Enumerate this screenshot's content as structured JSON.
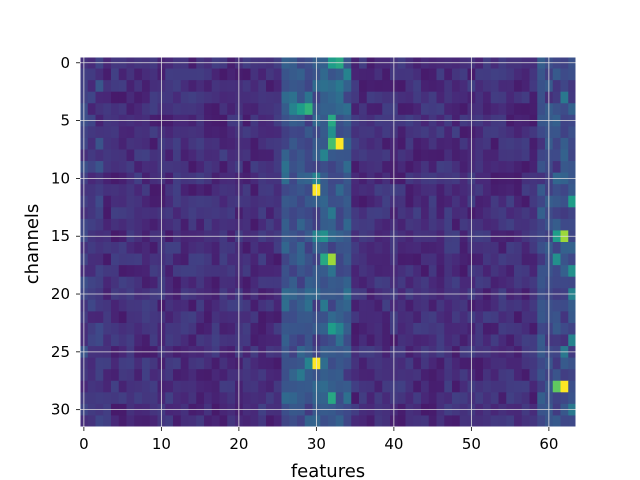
{
  "chart_data": {
    "type": "heatmap",
    "title": "",
    "xlabel": "features",
    "ylabel": "channels",
    "x_range": [
      -0.5,
      63.5
    ],
    "y_range": [
      31.5,
      -0.5
    ],
    "n_rows": 32,
    "n_cols": 64,
    "xticks": [
      0,
      10,
      20,
      30,
      40,
      50,
      60
    ],
    "yticks": [
      0,
      5,
      10,
      15,
      20,
      25,
      30
    ],
    "grid": true,
    "colormap": "viridis",
    "value_range": [
      0,
      1
    ],
    "baseline_value": 0.13,
    "highlights": [
      {
        "row": 7,
        "col": 33,
        "value": 1.0
      },
      {
        "row": 11,
        "col": 30,
        "value": 1.0
      },
      {
        "row": 26,
        "col": 30,
        "value": 1.0
      },
      {
        "row": 28,
        "col": 62,
        "value": 1.0
      },
      {
        "row": 28,
        "col": 61,
        "value": 0.75
      },
      {
        "row": 15,
        "col": 62,
        "value": 0.85
      },
      {
        "row": 15,
        "col": 61,
        "value": 0.55
      },
      {
        "row": 17,
        "col": 32,
        "value": 0.85
      },
      {
        "row": 17,
        "col": 31,
        "value": 0.6
      },
      {
        "row": 7,
        "col": 32,
        "value": 0.7
      },
      {
        "row": 4,
        "col": 29,
        "value": 0.65
      },
      {
        "row": 4,
        "col": 28,
        "value": 0.55
      },
      {
        "row": 4,
        "col": 27,
        "value": 0.45
      },
      {
        "row": 0,
        "col": 33,
        "value": 0.6
      },
      {
        "row": 0,
        "col": 32,
        "value": 0.55
      },
      {
        "row": 6,
        "col": 32,
        "value": 0.5
      },
      {
        "row": 5,
        "col": 32,
        "value": 0.6
      },
      {
        "row": 12,
        "col": 63,
        "value": 0.55
      },
      {
        "row": 23,
        "col": 32,
        "value": 0.55
      },
      {
        "row": 23,
        "col": 33,
        "value": 0.45
      },
      {
        "row": 29,
        "col": 32,
        "value": 0.6
      },
      {
        "row": 18,
        "col": 63,
        "value": 0.5
      },
      {
        "row": 20,
        "col": 63,
        "value": 0.45
      },
      {
        "row": 26,
        "col": 29,
        "value": 0.45
      },
      {
        "row": 15,
        "col": 31,
        "value": 0.5
      },
      {
        "row": 15,
        "col": 30,
        "value": 0.45
      },
      {
        "row": 17,
        "col": 61,
        "value": 0.5
      },
      {
        "row": 24,
        "col": 63,
        "value": 0.45
      },
      {
        "row": 8,
        "col": 31,
        "value": 0.45
      },
      {
        "row": 10,
        "col": 30,
        "value": 0.45
      },
      {
        "row": 27,
        "col": 28,
        "value": 0.4
      },
      {
        "row": 30,
        "col": 63,
        "value": 0.4
      },
      {
        "row": 1,
        "col": 34,
        "value": 0.45
      },
      {
        "row": 2,
        "col": 33,
        "value": 0.4
      },
      {
        "row": 3,
        "col": 62,
        "value": 0.4
      },
      {
        "row": 13,
        "col": 32,
        "value": 0.4
      },
      {
        "row": 21,
        "col": 31,
        "value": 0.4
      },
      {
        "row": 25,
        "col": 62,
        "value": 0.4
      }
    ]
  }
}
